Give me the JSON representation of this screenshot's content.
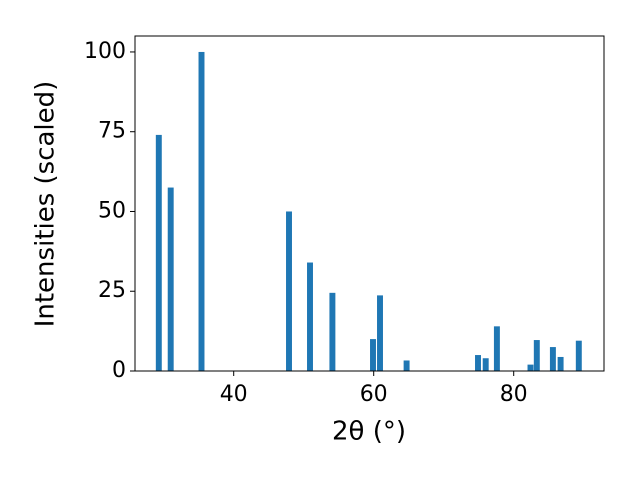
{
  "chart_data": {
    "type": "bar",
    "xlabel": "2θ (°)",
    "ylabel": "Intensities (scaled)",
    "color": "#1f77b4",
    "x": [
      29.3,
      31.0,
      35.4,
      47.9,
      50.9,
      54.1,
      59.9,
      60.9,
      64.7,
      74.9,
      76.0,
      77.6,
      82.4,
      83.3,
      85.6,
      86.7,
      89.3
    ],
    "values": [
      74,
      57.5,
      100,
      50,
      34,
      24.5,
      10,
      23.7,
      3.3,
      5,
      4,
      14,
      2,
      9.7,
      7.5,
      4.4,
      9.5
    ],
    "xlim": [
      25.9,
      92.9
    ],
    "ylim": [
      0,
      105
    ],
    "xticks": [
      40,
      60,
      80
    ],
    "yticks": [
      0,
      25,
      50,
      75,
      100
    ],
    "grid": false
  }
}
